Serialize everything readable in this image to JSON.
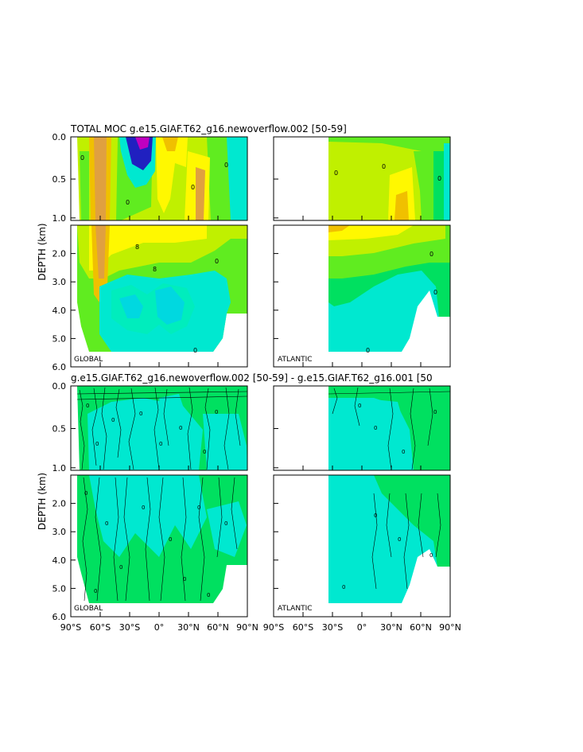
{
  "titles": {
    "top": "TOTAL MOC g.e15.GIAF.T62_g16.newoverflow.002 [50-59]",
    "bottom": "g.e15.GIAF.T62_g16.newoverflow.002 [50-59] - g.e15.GIAF.T62_g16.001 [50"
  },
  "y_axis_label": "DEPTH (km)",
  "y_ticks_upper": [
    "0.0",
    "0.5",
    "1.0"
  ],
  "y_ticks_lower": [
    "2.0",
    "3.0",
    "4.0",
    "5.0",
    "6.0"
  ],
  "x_ticks_global": [
    "90°S",
    "60°S",
    "30°S",
    "0°",
    "30°N",
    "60°N",
    "90°N"
  ],
  "x_ticks_atlantic": [
    "90°S",
    "60°S",
    "30°S",
    "0°",
    "30°N",
    "60°N",
    "90°N"
  ],
  "panel_labels": [
    "GLOBAL",
    "ATLANTIC",
    "GLOBAL",
    "ATLANTIC"
  ],
  "contour_labels": [
    "0",
    "8"
  ],
  "colors": {
    "white": "#ffffff",
    "cyan": "#00e8d0",
    "aqua": "#00f0b0",
    "green": "#00e060",
    "lime": "#60ec20",
    "yellowgreen": "#c0f000",
    "yellow": "#fff800",
    "orange": "#f0c000",
    "darkorange": "#e0a040",
    "blue": "#2020c0",
    "magenta": "#c000c0"
  },
  "chart_data": {
    "type": "heatmap",
    "title": "TOTAL MOC g.e15.GIAF.T62_g16.newoverflow.002 [50-59]",
    "subtitle": "g.e15.GIAF.T62_g16.newoverflow.002 [50-59] - g.e15.GIAF.T62_g16.001 [50",
    "xlabel": "",
    "ylabel": "DEPTH (km)",
    "xlim": [
      -90,
      90
    ],
    "ylim_upper": [
      0,
      1
    ],
    "ylim_lower": [
      1,
      6
    ],
    "panels": [
      "GLOBAL",
      "ATLANTIC",
      "GLOBAL",
      "ATLANTIC"
    ]
  }
}
